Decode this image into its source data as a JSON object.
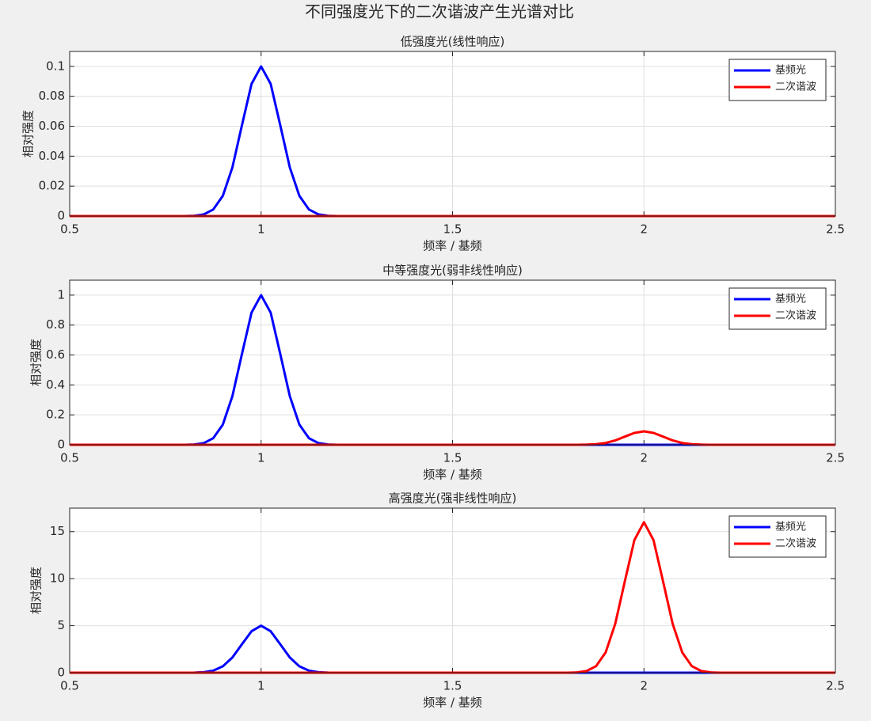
{
  "title": "不同强度光下的二次谐波产生光谱对比",
  "chart_data": [
    {
      "type": "line",
      "title": "低强度光(线性响应)",
      "x_label": "频率 / 基频",
      "y_label": "相对强度",
      "x": [
        0.5,
        0.75,
        0.8,
        0.825,
        0.85,
        0.875,
        0.9,
        0.925,
        0.95,
        0.975,
        1,
        1.025,
        1.05,
        1.075,
        1.1,
        1.125,
        1.15,
        1.175,
        1.2,
        1.25,
        1.75,
        1.8,
        1.825,
        1.85,
        1.875,
        1.9,
        1.925,
        1.95,
        1.975,
        2,
        2.025,
        2.05,
        2.075,
        2.1,
        2.125,
        2.15,
        2.175,
        2.2,
        2.25,
        2.5
      ],
      "series": [
        {
          "name": "基频光",
          "color": "#0000ff",
          "values": [
            0,
            0,
            0,
            0.0002,
            0.0011,
            0.0044,
            0.0135,
            0.0325,
            0.0607,
            0.0883,
            0.1,
            0.0883,
            0.0607,
            0.0325,
            0.0135,
            0.0044,
            0.0011,
            0.0002,
            0,
            0,
            0,
            0,
            0,
            0,
            0,
            0,
            0,
            0,
            0,
            0,
            0,
            0,
            0,
            0,
            0,
            0,
            0,
            0,
            0,
            0
          ]
        },
        {
          "name": "二次谐波",
          "color": "#ff0000",
          "values": [
            0,
            0,
            0,
            0,
            0,
            0,
            0,
            0,
            0,
            0,
            0,
            0,
            0,
            0,
            0,
            0,
            0,
            0,
            0,
            0,
            0,
            0,
            0,
            0,
            0,
            0,
            0,
            0,
            0,
            0,
            0,
            0,
            0,
            0,
            0,
            0,
            0,
            0,
            0,
            0
          ]
        }
      ],
      "xlim": [
        0.5,
        2.5
      ],
      "xticks": [
        0.5,
        1,
        1.5,
        2,
        2.5
      ],
      "ylim": [
        0,
        0.11
      ],
      "yticks": [
        0,
        0.02,
        0.04,
        0.06,
        0.08,
        0.1
      ],
      "grid": true,
      "legend": "top-right"
    },
    {
      "type": "line",
      "title": "中等强度光(弱非线性响应)",
      "x_label": "频率 / 基频",
      "y_label": "相对强度",
      "x": [
        0.5,
        0.75,
        0.8,
        0.825,
        0.85,
        0.875,
        0.9,
        0.925,
        0.95,
        0.975,
        1,
        1.025,
        1.05,
        1.075,
        1.1,
        1.125,
        1.15,
        1.175,
        1.2,
        1.25,
        1.75,
        1.8,
        1.825,
        1.85,
        1.875,
        1.9,
        1.925,
        1.95,
        1.975,
        2,
        2.025,
        2.05,
        2.075,
        2.1,
        2.125,
        2.15,
        2.175,
        2.2,
        2.25,
        2.5
      ],
      "series": [
        {
          "name": "基频光",
          "color": "#0000ff",
          "values": [
            0,
            0,
            0,
            0.002,
            0.011,
            0.044,
            0.135,
            0.325,
            0.607,
            0.883,
            1,
            0.883,
            0.607,
            0.325,
            0.135,
            0.044,
            0.011,
            0.002,
            0,
            0,
            0,
            0,
            0,
            0,
            0,
            0,
            0,
            0,
            0,
            0,
            0,
            0,
            0,
            0,
            0,
            0,
            0,
            0,
            0,
            0
          ]
        },
        {
          "name": "二次谐波",
          "color": "#ff0000",
          "values": [
            0,
            0,
            0,
            0,
            0,
            0,
            0,
            0,
            0,
            0,
            0,
            0,
            0,
            0,
            0,
            0,
            0,
            0,
            0,
            0,
            0,
            0,
            0.0002,
            0.001,
            0.004,
            0.0122,
            0.0292,
            0.0546,
            0.0794,
            0.09,
            0.0794,
            0.0546,
            0.0292,
            0.0122,
            0.004,
            0.001,
            0.0002,
            0,
            0,
            0
          ]
        }
      ],
      "xlim": [
        0.5,
        2.5
      ],
      "xticks": [
        0.5,
        1,
        1.5,
        2,
        2.5
      ],
      "ylim": [
        0,
        1.1
      ],
      "yticks": [
        0,
        0.2,
        0.4,
        0.6,
        0.8,
        1
      ],
      "grid": true,
      "legend": "top-right"
    },
    {
      "type": "line",
      "title": "高强度光(强非线性响应)",
      "x_label": "频率 / 基频",
      "y_label": "相对强度",
      "x": [
        0.5,
        0.75,
        0.8,
        0.825,
        0.85,
        0.875,
        0.9,
        0.925,
        0.95,
        0.975,
        1,
        1.025,
        1.05,
        1.075,
        1.1,
        1.125,
        1.15,
        1.175,
        1.2,
        1.25,
        1.75,
        1.8,
        1.825,
        1.85,
        1.875,
        1.9,
        1.925,
        1.95,
        1.975,
        2,
        2.025,
        2.05,
        2.075,
        2.1,
        2.125,
        2.15,
        2.175,
        2.2,
        2.25,
        2.5
      ],
      "series": [
        {
          "name": "基频光",
          "color": "#0000ff",
          "values": [
            0,
            0,
            0.002,
            0.011,
            0.056,
            0.22,
            0.68,
            1.62,
            3.03,
            4.41,
            5,
            4.41,
            3.03,
            1.62,
            0.68,
            0.22,
            0.056,
            0.011,
            0.002,
            0,
            0,
            0,
            0,
            0,
            0,
            0,
            0,
            0,
            0,
            0,
            0,
            0,
            0,
            0,
            0,
            0,
            0,
            0,
            0,
            0
          ]
        },
        {
          "name": "二次谐波",
          "color": "#ff0000",
          "values": [
            0,
            0,
            0,
            0,
            0,
            0,
            0,
            0,
            0,
            0,
            0,
            0,
            0,
            0,
            0,
            0,
            0,
            0,
            0,
            0,
            0,
            0.005,
            0.035,
            0.18,
            0.7,
            2.16,
            5.2,
            9.7,
            14.1,
            16,
            14.1,
            9.7,
            5.2,
            2.16,
            0.7,
            0.18,
            0.035,
            0.005,
            0,
            0
          ]
        }
      ],
      "xlim": [
        0.5,
        2.5
      ],
      "xticks": [
        0.5,
        1,
        1.5,
        2,
        2.5
      ],
      "ylim": [
        0,
        17.5
      ],
      "yticks": [
        0,
        5,
        10,
        15
      ],
      "grid": true,
      "legend": "top-right"
    }
  ]
}
